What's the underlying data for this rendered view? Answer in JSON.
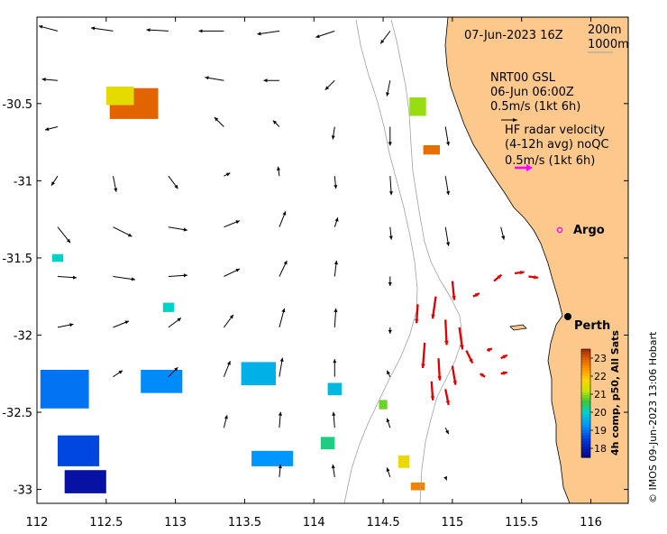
{
  "header": {
    "timestamp": "07-Jun-2023 16Z",
    "depth_contour_1": "200m",
    "depth_contour_2": "1000m"
  },
  "model_legend": {
    "line1": "NRT00 GSL",
    "line2": "06-Jun 06:00Z",
    "line3": "0.5m/s (1kt 6h)"
  },
  "radar_legend": {
    "line1": "HF radar velocity",
    "line2": "(4-12h avg) noQC",
    "line3": "0.5m/s (1kt 6h)"
  },
  "places": [
    {
      "name": "Argo",
      "lon": 115.78,
      "lat": -31.41
    },
    {
      "name": "Perth",
      "lon": 115.86,
      "lat": -31.95
    }
  ],
  "colorbar": {
    "label": "4h comp, p50, All Sats",
    "ticks": [
      "23",
      "22",
      "21",
      "20",
      "19",
      "18"
    ],
    "min": 17.5,
    "max": 23.5
  },
  "credit": "© IMOS 09-Jun-2023 13:06 Hobart",
  "chart_data": {
    "type": "map",
    "x_ticks": [
      "112",
      "112.5",
      "113",
      "113.5",
      "114",
      "114.5",
      "115",
      "115.5",
      "116"
    ],
    "y_ticks": [
      "-30.5",
      "-31",
      "-31.5",
      "-32",
      "-32.5",
      "-33"
    ],
    "xlim": [
      112,
      116.27
    ],
    "ylim": [
      -33.09,
      -29.94
    ],
    "colors": {
      "land": "#fcc88c",
      "model_arrow": "#000000",
      "radar_arrow": "#e00000",
      "legend_radar_arrow": "#ff00ff",
      "argo_marker": "#ff00ff",
      "contour": "#a0a0a0"
    },
    "model_current_vectors": [
      {
        "lon": 112.15,
        "lat": -30.03,
        "u": -0.3,
        "v": 0.08
      },
      {
        "lon": 112.55,
        "lat": -30.03,
        "u": -0.35,
        "v": 0.05
      },
      {
        "lon": 112.95,
        "lat": -30.03,
        "u": -0.35,
        "v": 0.02
      },
      {
        "lon": 113.35,
        "lat": -30.03,
        "u": -0.4,
        "v": 0.0
      },
      {
        "lon": 113.75,
        "lat": -30.03,
        "u": -0.35,
        "v": -0.05
      },
      {
        "lon": 114.15,
        "lat": -30.03,
        "u": -0.3,
        "v": -0.1
      },
      {
        "lon": 114.55,
        "lat": -30.03,
        "u": -0.15,
        "v": -0.2
      },
      {
        "lon": 112.15,
        "lat": -30.35,
        "u": -0.25,
        "v": 0.02
      },
      {
        "lon": 113.35,
        "lat": -30.35,
        "u": -0.3,
        "v": 0.05
      },
      {
        "lon": 113.75,
        "lat": -30.35,
        "u": -0.25,
        "v": 0.0
      },
      {
        "lon": 114.15,
        "lat": -30.35,
        "u": -0.15,
        "v": -0.15
      },
      {
        "lon": 114.55,
        "lat": -30.35,
        "u": -0.05,
        "v": -0.25
      },
      {
        "lon": 112.15,
        "lat": -30.65,
        "u": -0.2,
        "v": -0.05
      },
      {
        "lon": 113.35,
        "lat": -30.65,
        "u": -0.15,
        "v": 0.15
      },
      {
        "lon": 113.75,
        "lat": -30.65,
        "u": -0.1,
        "v": 0.1
      },
      {
        "lon": 114.15,
        "lat": -30.65,
        "u": -0.03,
        "v": -0.2
      },
      {
        "lon": 114.55,
        "lat": -30.65,
        "u": 0.0,
        "v": -0.3
      },
      {
        "lon": 114.95,
        "lat": -30.65,
        "u": 0.05,
        "v": -0.3
      },
      {
        "lon": 112.15,
        "lat": -30.97,
        "u": -0.1,
        "v": -0.15
      },
      {
        "lon": 112.55,
        "lat": -30.97,
        "u": 0.05,
        "v": -0.25
      },
      {
        "lon": 112.95,
        "lat": -30.97,
        "u": 0.15,
        "v": -0.2
      },
      {
        "lon": 113.35,
        "lat": -30.97,
        "u": 0.1,
        "v": 0.05
      },
      {
        "lon": 113.75,
        "lat": -30.97,
        "u": -0.02,
        "v": 0.15
      },
      {
        "lon": 114.15,
        "lat": -30.97,
        "u": 0.02,
        "v": -0.2
      },
      {
        "lon": 114.55,
        "lat": -30.97,
        "u": 0.02,
        "v": -0.3
      },
      {
        "lon": 114.95,
        "lat": -30.97,
        "u": 0.05,
        "v": -0.3
      },
      {
        "lon": 112.15,
        "lat": -31.3,
        "u": 0.2,
        "v": -0.25
      },
      {
        "lon": 112.55,
        "lat": -31.3,
        "u": 0.3,
        "v": -0.15
      },
      {
        "lon": 112.95,
        "lat": -31.3,
        "u": 0.3,
        "v": -0.05
      },
      {
        "lon": 113.35,
        "lat": -31.3,
        "u": 0.25,
        "v": 0.1
      },
      {
        "lon": 113.75,
        "lat": -31.3,
        "u": 0.1,
        "v": 0.25
      },
      {
        "lon": 114.15,
        "lat": -31.3,
        "u": 0.05,
        "v": 0.15
      },
      {
        "lon": 114.55,
        "lat": -31.3,
        "u": 0.02,
        "v": -0.2
      },
      {
        "lon": 114.95,
        "lat": -31.3,
        "u": 0.05,
        "v": -0.3
      },
      {
        "lon": 115.35,
        "lat": -31.3,
        "u": 0.05,
        "v": -0.2
      },
      {
        "lon": 112.15,
        "lat": -31.62,
        "u": 0.3,
        "v": -0.02
      },
      {
        "lon": 112.55,
        "lat": -31.62,
        "u": 0.35,
        "v": -0.05
      },
      {
        "lon": 112.95,
        "lat": -31.62,
        "u": 0.3,
        "v": 0.02
      },
      {
        "lon": 113.35,
        "lat": -31.62,
        "u": 0.25,
        "v": 0.12
      },
      {
        "lon": 113.75,
        "lat": -31.62,
        "u": 0.12,
        "v": 0.25
      },
      {
        "lon": 114.15,
        "lat": -31.62,
        "u": 0.03,
        "v": 0.25
      },
      {
        "lon": 114.55,
        "lat": -31.62,
        "u": 0.0,
        "v": -0.15
      },
      {
        "lon": 112.15,
        "lat": -31.95,
        "u": 0.25,
        "v": 0.05
      },
      {
        "lon": 112.55,
        "lat": -31.95,
        "u": 0.25,
        "v": 0.1
      },
      {
        "lon": 112.95,
        "lat": -31.95,
        "u": 0.2,
        "v": 0.15
      },
      {
        "lon": 113.35,
        "lat": -31.95,
        "u": 0.15,
        "v": 0.2
      },
      {
        "lon": 113.75,
        "lat": -31.95,
        "u": 0.08,
        "v": 0.3
      },
      {
        "lon": 114.15,
        "lat": -31.95,
        "u": 0.02,
        "v": 0.3
      },
      {
        "lon": 114.55,
        "lat": -31.95,
        "u": 0.0,
        "v": -0.1
      },
      {
        "lon": 112.55,
        "lat": -32.27,
        "u": 0.15,
        "v": 0.1
      },
      {
        "lon": 112.95,
        "lat": -32.27,
        "u": 0.15,
        "v": 0.15
      },
      {
        "lon": 113.35,
        "lat": -32.27,
        "u": 0.1,
        "v": 0.25
      },
      {
        "lon": 113.75,
        "lat": -32.27,
        "u": 0.05,
        "v": 0.3
      },
      {
        "lon": 114.15,
        "lat": -32.27,
        "u": 0.0,
        "v": 0.28
      },
      {
        "lon": 114.55,
        "lat": -32.27,
        "u": -0.05,
        "v": 0.1
      },
      {
        "lon": 113.35,
        "lat": -32.6,
        "u": 0.05,
        "v": 0.2
      },
      {
        "lon": 113.75,
        "lat": -32.6,
        "u": 0.02,
        "v": 0.25
      },
      {
        "lon": 114.15,
        "lat": -32.6,
        "u": -0.02,
        "v": 0.25
      },
      {
        "lon": 114.55,
        "lat": -32.6,
        "u": -0.05,
        "v": 0.15
      },
      {
        "lon": 114.95,
        "lat": -32.6,
        "u": 0.05,
        "v": -0.1
      },
      {
        "lon": 113.75,
        "lat": -32.92,
        "u": 0.02,
        "v": 0.2
      },
      {
        "lon": 114.15,
        "lat": -32.92,
        "u": -0.03,
        "v": 0.2
      },
      {
        "lon": 114.55,
        "lat": -32.92,
        "u": -0.05,
        "v": 0.15
      },
      {
        "lon": 114.95,
        "lat": -32.92,
        "u": 0.02,
        "v": -0.05
      }
    ],
    "hf_radar_vectors": [
      {
        "lon": 114.75,
        "lat": -31.8,
        "u": -0.02,
        "v": -0.3
      },
      {
        "lon": 114.88,
        "lat": -31.75,
        "u": -0.05,
        "v": -0.35
      },
      {
        "lon": 114.95,
        "lat": -31.9,
        "u": 0.02,
        "v": -0.4
      },
      {
        "lon": 115.0,
        "lat": -31.65,
        "u": 0.03,
        "v": -0.3
      },
      {
        "lon": 115.05,
        "lat": -31.95,
        "u": 0.05,
        "v": -0.35
      },
      {
        "lon": 114.8,
        "lat": -32.05,
        "u": -0.03,
        "v": -0.4
      },
      {
        "lon": 114.9,
        "lat": -32.15,
        "u": 0.02,
        "v": -0.35
      },
      {
        "lon": 115.0,
        "lat": -32.2,
        "u": 0.05,
        "v": -0.3
      },
      {
        "lon": 114.85,
        "lat": -32.3,
        "u": 0.02,
        "v": -0.3
      },
      {
        "lon": 114.95,
        "lat": -32.35,
        "u": 0.05,
        "v": -0.25
      },
      {
        "lon": 115.1,
        "lat": -32.1,
        "u": 0.1,
        "v": -0.2
      },
      {
        "lon": 115.15,
        "lat": -31.75,
        "u": 0.1,
        "v": 0.05
      },
      {
        "lon": 115.3,
        "lat": -31.65,
        "u": 0.12,
        "v": 0.1
      },
      {
        "lon": 115.45,
        "lat": -31.6,
        "u": 0.15,
        "v": 0.02
      },
      {
        "lon": 115.55,
        "lat": -31.62,
        "u": 0.15,
        "v": -0.02
      },
      {
        "lon": 115.25,
        "lat": -32.1,
        "u": 0.08,
        "v": 0.03
      },
      {
        "lon": 115.35,
        "lat": -32.15,
        "u": 0.1,
        "v": 0.05
      },
      {
        "lon": 115.2,
        "lat": -32.25,
        "u": 0.08,
        "v": -0.05
      },
      {
        "lon": 115.35,
        "lat": -32.25,
        "u": 0.1,
        "v": 0.02
      }
    ],
    "sst_patches": [
      {
        "lon": 112.7,
        "lat": -30.5,
        "w": 0.35,
        "h": 0.2,
        "value": 22.9
      },
      {
        "lon": 112.6,
        "lat": -30.45,
        "w": 0.2,
        "h": 0.12,
        "value": 21.5
      },
      {
        "lon": 114.75,
        "lat": -30.52,
        "w": 0.12,
        "h": 0.12,
        "value": 21.0
      },
      {
        "lon": 114.85,
        "lat": -30.8,
        "w": 0.12,
        "h": 0.06,
        "value": 22.8
      },
      {
        "lon": 112.15,
        "lat": -31.5,
        "w": 0.08,
        "h": 0.05,
        "value": 20.0
      },
      {
        "lon": 112.95,
        "lat": -31.82,
        "w": 0.08,
        "h": 0.06,
        "value": 20.0
      },
      {
        "lon": 112.2,
        "lat": -32.35,
        "w": 0.35,
        "h": 0.25,
        "value": 19.0
      },
      {
        "lon": 112.9,
        "lat": -32.3,
        "w": 0.3,
        "h": 0.15,
        "value": 19.2
      },
      {
        "lon": 113.6,
        "lat": -32.25,
        "w": 0.25,
        "h": 0.15,
        "value": 19.6
      },
      {
        "lon": 114.15,
        "lat": -32.35,
        "w": 0.1,
        "h": 0.08,
        "value": 19.7
      },
      {
        "lon": 112.3,
        "lat": -32.75,
        "w": 0.3,
        "h": 0.2,
        "value": 18.6
      },
      {
        "lon": 112.35,
        "lat": -32.95,
        "w": 0.3,
        "h": 0.15,
        "value": 17.8
      },
      {
        "lon": 113.7,
        "lat": -32.8,
        "w": 0.3,
        "h": 0.1,
        "value": 19.3
      },
      {
        "lon": 114.1,
        "lat": -32.7,
        "w": 0.1,
        "h": 0.08,
        "value": 20.3
      },
      {
        "lon": 114.65,
        "lat": -32.82,
        "w": 0.08,
        "h": 0.08,
        "value": 21.6
      },
      {
        "lon": 114.75,
        "lat": -32.98,
        "w": 0.1,
        "h": 0.05,
        "value": 22.6
      },
      {
        "lon": 114.5,
        "lat": -32.45,
        "w": 0.06,
        "h": 0.06,
        "value": 20.8
      }
    ]
  }
}
